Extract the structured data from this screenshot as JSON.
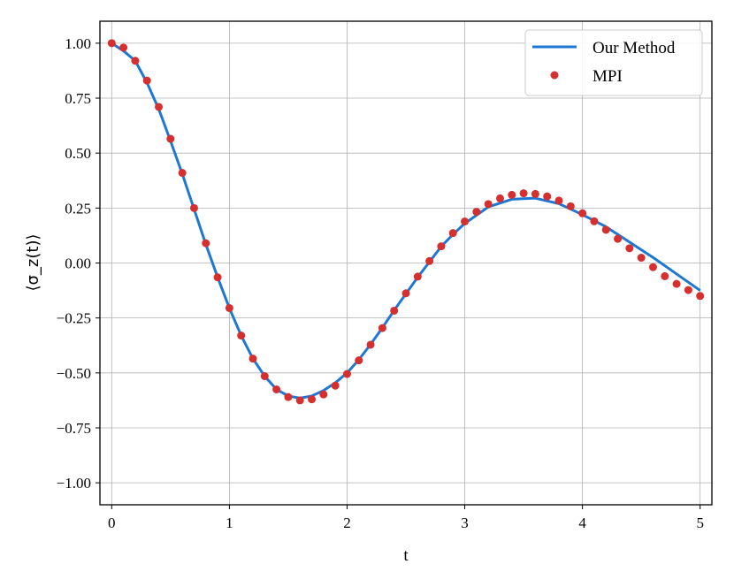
{
  "chart_data": {
    "type": "line",
    "title": "",
    "xlabel": "t",
    "ylabel": "⟨σ_z(t)⟩",
    "xlim": [
      -0.1,
      5.1
    ],
    "ylim": [
      -1.1,
      1.1
    ],
    "xticks": [
      0,
      1,
      2,
      3,
      4,
      5
    ],
    "xtick_labels": [
      "0",
      "1",
      "2",
      "3",
      "4",
      "5"
    ],
    "yticks": [
      1.0,
      0.75,
      0.5,
      0.25,
      0.0,
      -0.25,
      -0.5,
      -0.75,
      -1.0
    ],
    "ytick_labels": [
      "1.00",
      "0.75",
      "0.50",
      "0.25",
      "0.00",
      "−0.25",
      "−0.50",
      "−0.75",
      "−1.00"
    ],
    "grid": true,
    "legend_position": "top-right",
    "colors": {
      "line": "#1f77d4",
      "dots": "#d62f2f",
      "grid": "#b0b0b0"
    },
    "series": [
      {
        "name": "Our Method",
        "style": "line",
        "x": [
          0,
          0.1,
          0.2,
          0.3,
          0.4,
          0.5,
          0.6,
          0.7,
          0.8,
          0.9,
          1.0,
          1.1,
          1.2,
          1.3,
          1.4,
          1.5,
          1.6,
          1.7,
          1.8,
          1.9,
          2.0,
          2.1,
          2.2,
          2.3,
          2.4,
          2.5,
          2.6,
          2.7,
          2.8,
          2.9,
          3.0,
          3.2,
          3.4,
          3.6,
          3.8,
          4.0,
          4.2,
          4.4,
          4.6,
          4.8,
          5.0
        ],
        "y": [
          1.0,
          0.965,
          0.92,
          0.82,
          0.7,
          0.555,
          0.405,
          0.245,
          0.085,
          -0.065,
          -0.205,
          -0.33,
          -0.435,
          -0.515,
          -0.575,
          -0.605,
          -0.615,
          -0.605,
          -0.58,
          -0.545,
          -0.5,
          -0.44,
          -0.37,
          -0.295,
          -0.215,
          -0.14,
          -0.065,
          0.005,
          0.075,
          0.13,
          0.18,
          0.255,
          0.29,
          0.295,
          0.27,
          0.22,
          0.165,
          0.095,
          0.025,
          -0.05,
          -0.125
        ]
      },
      {
        "name": "MPI",
        "style": "dots",
        "x": [
          0,
          0.1,
          0.2,
          0.3,
          0.4,
          0.5,
          0.6,
          0.7,
          0.8,
          0.9,
          1.0,
          1.1,
          1.2,
          1.3,
          1.4,
          1.5,
          1.6,
          1.7,
          1.8,
          1.9,
          2.0,
          2.1,
          2.2,
          2.3,
          2.4,
          2.5,
          2.6,
          2.7,
          2.8,
          2.9,
          3.0,
          3.1,
          3.2,
          3.3,
          3.4,
          3.5,
          3.6,
          3.7,
          3.8,
          3.9,
          4.0,
          4.1,
          4.2,
          4.3,
          4.4,
          4.5,
          4.6,
          4.7,
          4.8,
          4.9,
          5.0
        ],
        "y": [
          1.0,
          0.98,
          0.92,
          0.83,
          0.71,
          0.565,
          0.41,
          0.25,
          0.09,
          -0.065,
          -0.205,
          -0.33,
          -0.435,
          -0.515,
          -0.575,
          -0.61,
          -0.625,
          -0.62,
          -0.598,
          -0.558,
          -0.505,
          -0.443,
          -0.372,
          -0.296,
          -0.217,
          -0.138,
          -0.062,
          0.009,
          0.076,
          0.136,
          0.189,
          0.233,
          0.268,
          0.294,
          0.31,
          0.317,
          0.314,
          0.303,
          0.284,
          0.258,
          0.226,
          0.19,
          0.151,
          0.11,
          0.067,
          0.024,
          -0.019,
          -0.06,
          -0.095,
          -0.123,
          -0.15
        ]
      }
    ]
  }
}
